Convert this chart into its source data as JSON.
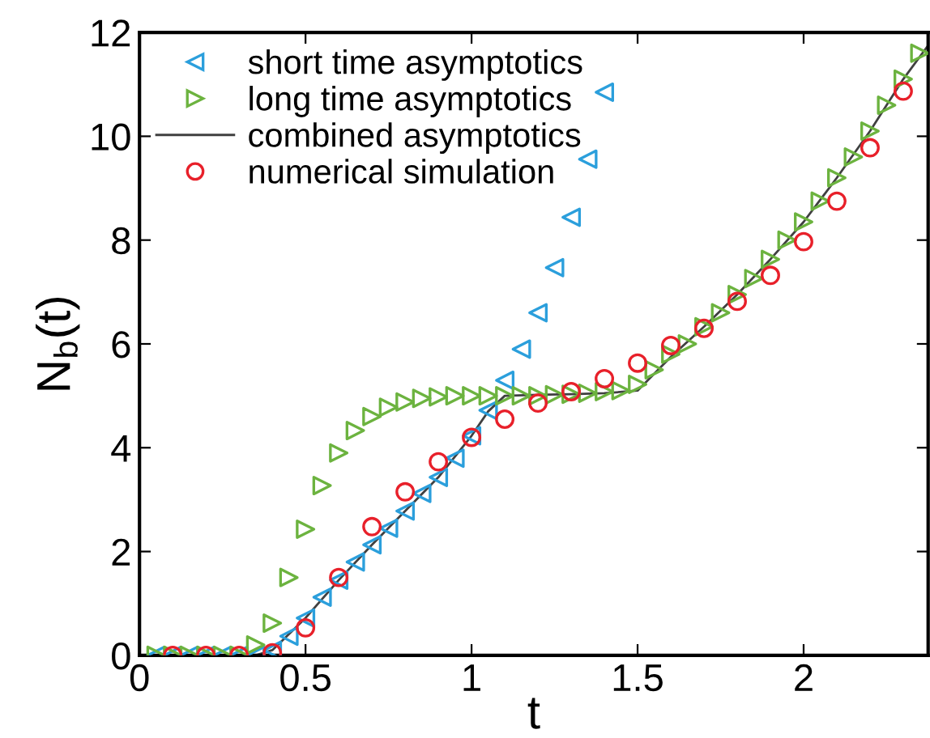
{
  "chart_data": {
    "type": "scatter",
    "xlabel": "t",
    "ylabel": "N$_{b}$(t)",
    "xlim": [
      0,
      2.375
    ],
    "ylim": [
      0,
      12
    ],
    "xticks": [
      0,
      0.5,
      1,
      1.5,
      2
    ],
    "yticks": [
      0,
      2,
      4,
      6,
      8,
      10,
      12
    ],
    "grid": false,
    "legend": "top left",
    "series": [
      {
        "name": "short time asymptotics",
        "marker": "triangle_left",
        "color": "#2b9fdc",
        "x": [
          0.05,
          0.1,
          0.15,
          0.2,
          0.25,
          0.3,
          0.35,
          0.4,
          0.45,
          0.5,
          0.55,
          0.6,
          0.65,
          0.7,
          0.75,
          0.8,
          0.85,
          0.9,
          0.95,
          1.0,
          1.05,
          1.1,
          1.15,
          1.2,
          1.25,
          1.3,
          1.35,
          1.4
        ],
        "values": [
          0,
          0,
          0,
          0,
          0,
          0,
          0,
          0.1,
          0.37,
          0.72,
          1.12,
          1.45,
          1.8,
          2.13,
          2.45,
          2.78,
          3.12,
          3.43,
          3.8,
          4.23,
          4.72,
          5.3,
          5.9,
          6.6,
          7.47,
          8.44,
          9.56,
          10.85
        ]
      },
      {
        "name": "long time asymptotics",
        "marker": "triangle_right",
        "color": "#6cb33f",
        "x": [
          0.05,
          0.1,
          0.15,
          0.2,
          0.25,
          0.3,
          0.35,
          0.4,
          0.45,
          0.5,
          0.55,
          0.6,
          0.65,
          0.7,
          0.75,
          0.8,
          0.85,
          0.9,
          0.95,
          1.0,
          1.05,
          1.1,
          1.15,
          1.2,
          1.25,
          1.3,
          1.35,
          1.4,
          1.45,
          1.5,
          1.55,
          1.6,
          1.65,
          1.7,
          1.75,
          1.8,
          1.85,
          1.9,
          1.95,
          2.0,
          2.05,
          2.1,
          2.15,
          2.2,
          2.25,
          2.3,
          2.35
        ],
        "values": [
          0,
          0,
          0,
          0,
          0,
          0,
          0.2,
          0.62,
          1.5,
          2.43,
          3.27,
          3.9,
          4.33,
          4.6,
          4.78,
          4.88,
          4.95,
          4.98,
          5.0,
          5.0,
          5.0,
          5.0,
          5.0,
          5.0,
          5.02,
          5.03,
          5.05,
          5.08,
          5.1,
          5.22,
          5.5,
          5.8,
          6.0,
          6.33,
          6.6,
          6.95,
          7.26,
          7.63,
          8.0,
          8.35,
          8.75,
          9.2,
          9.6,
          10.1,
          10.6,
          11.1,
          11.6
        ]
      },
      {
        "name": "combined asymptotics",
        "type": "line",
        "marker": "none",
        "line_style": "solid",
        "color": "#404040",
        "x": [
          0.05,
          0.35,
          0.4,
          0.5,
          0.6,
          0.7,
          0.8,
          0.9,
          1.0,
          1.05,
          1.1,
          1.2,
          1.3,
          1.4,
          1.5,
          1.6,
          1.7,
          1.8,
          1.9,
          2.0,
          2.1,
          2.2,
          2.3,
          2.375
        ],
        "values": [
          0,
          0,
          0.1,
          0.72,
          1.45,
          2.13,
          2.78,
          3.43,
          4.23,
          4.7,
          5.0,
          5.02,
          5.03,
          5.05,
          5.1,
          5.75,
          6.33,
          6.95,
          7.63,
          8.35,
          9.2,
          10.1,
          11.1,
          11.75
        ]
      },
      {
        "name": "numerical simulation",
        "marker": "circle",
        "color": "#e8202a",
        "x": [
          0.1,
          0.2,
          0.3,
          0.4,
          0.5,
          0.6,
          0.7,
          0.8,
          0.9,
          1.0,
          1.1,
          1.2,
          1.3,
          1.4,
          1.5,
          1.6,
          1.7,
          1.8,
          1.9,
          2.0,
          2.1,
          2.2,
          2.3
        ],
        "values": [
          0,
          0,
          0,
          0.05,
          0.53,
          1.5,
          2.48,
          3.15,
          3.73,
          4.2,
          4.55,
          4.86,
          5.08,
          5.33,
          5.63,
          5.97,
          6.3,
          6.82,
          7.32,
          7.97,
          8.75,
          9.78,
          10.87
        ]
      }
    ]
  }
}
